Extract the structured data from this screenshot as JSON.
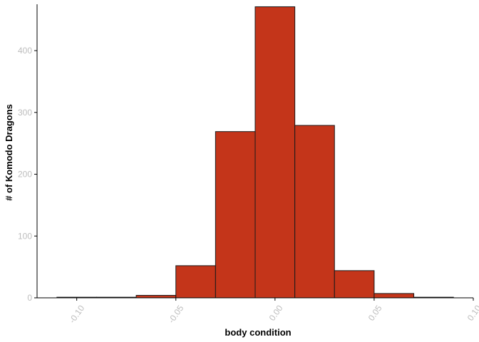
{
  "chart_data": {
    "type": "bar",
    "subtype": "histogram",
    "xlabel": "body condition",
    "ylabel": "# of Komodo Dragons",
    "xlim": [
      -0.12,
      0.1
    ],
    "ylim": [
      0,
      475
    ],
    "bins": [
      {
        "x0": -0.11,
        "x1": -0.09,
        "count": 1
      },
      {
        "x0": -0.09,
        "x1": -0.07,
        "count": 1
      },
      {
        "x0": -0.07,
        "x1": -0.05,
        "count": 4
      },
      {
        "x0": -0.05,
        "x1": -0.03,
        "count": 52
      },
      {
        "x0": -0.03,
        "x1": -0.01,
        "count": 269
      },
      {
        "x0": -0.01,
        "x1": 0.01,
        "count": 471
      },
      {
        "x0": 0.01,
        "x1": 0.03,
        "count": 279
      },
      {
        "x0": 0.03,
        "x1": 0.05,
        "count": 44
      },
      {
        "x0": 0.05,
        "x1": 0.07,
        "count": 7
      },
      {
        "x0": 0.07,
        "x1": 0.09,
        "count": 1
      }
    ],
    "x_ticks": [
      {
        "value": -0.1,
        "label": "-0.10"
      },
      {
        "value": -0.05,
        "label": "-0.05"
      },
      {
        "value": 0.0,
        "label": "0.00"
      },
      {
        "value": 0.05,
        "label": "0.05"
      },
      {
        "value": 0.1,
        "label": "0.10"
      }
    ],
    "y_ticks": [
      {
        "value": 0,
        "label": "0"
      },
      {
        "value": 100,
        "label": "100"
      },
      {
        "value": 200,
        "label": "200"
      },
      {
        "value": 300,
        "label": "300"
      },
      {
        "value": 400,
        "label": "400"
      }
    ],
    "grid": false,
    "colors": {
      "bar_fill": "#c4351a",
      "bar_stroke": "#1a1a1a",
      "axis": "#000000",
      "tick_label": "#bdbdbd"
    }
  }
}
